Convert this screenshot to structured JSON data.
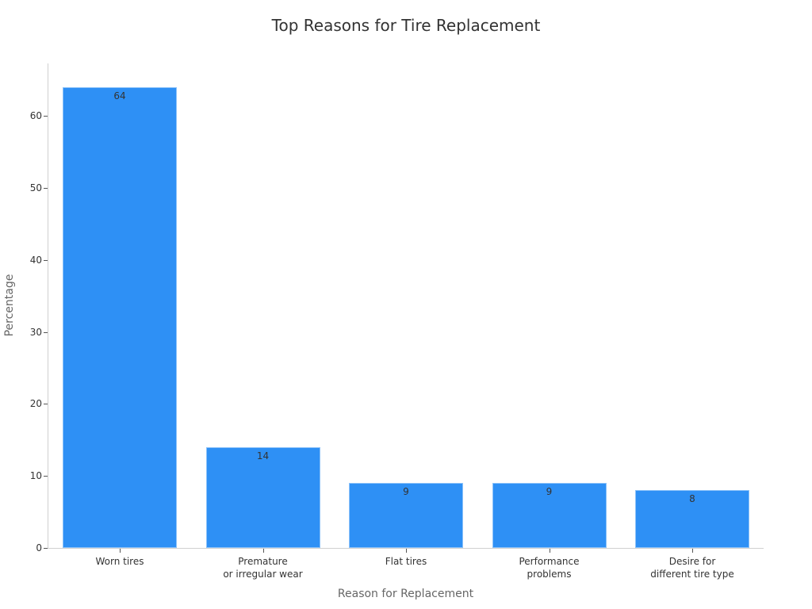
{
  "chart_data": {
    "type": "bar",
    "title": "Top Reasons for Tire Replacement",
    "xlabel": "Reason for Replacement",
    "ylabel": "Percentage",
    "categories": [
      "Worn tires",
      "Premature\nor irregular wear",
      "Flat tires",
      "Performance\nproblems",
      "Desire for\ndifferent tire type"
    ],
    "values": [
      64,
      14,
      9,
      9,
      8
    ],
    "value_labels": [
      "64",
      "14",
      "9",
      "9",
      "8"
    ],
    "yticks": [
      "0",
      "10",
      "20",
      "30",
      "40",
      "50",
      "60"
    ],
    "ylim": [
      0,
      67
    ],
    "grid": false,
    "legend": "none",
    "bar_color": "#2e90f5"
  }
}
